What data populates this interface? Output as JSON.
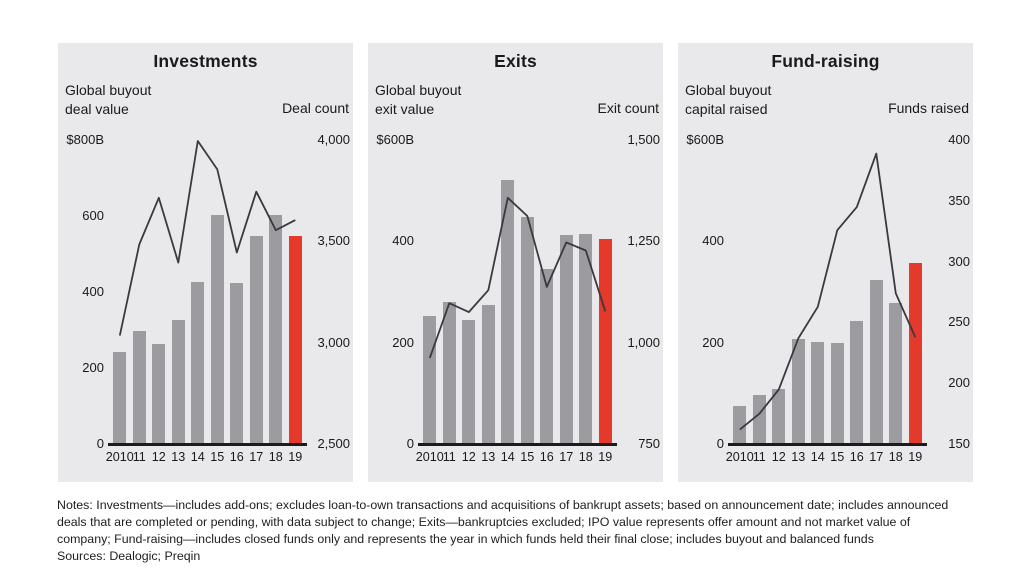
{
  "colors": {
    "panel_bg": "#e9e9eb",
    "bar_gray": "#9b9ba0",
    "accent_red": "#e5392b",
    "trend_line": "#3a3a3e",
    "axis_black": "#1b1b1b"
  },
  "chart_data": [
    {
      "type": "bar+line",
      "title": "Investments",
      "left_label_lines": [
        "Global buyout",
        "deal value"
      ],
      "right_label": "Deal count",
      "years": [
        "2010",
        "11",
        "12",
        "13",
        "14",
        "15",
        "16",
        "17",
        "18",
        "19"
      ],
      "left_axis": {
        "max": 800,
        "ticks": [
          {
            "label": "$800B",
            "value": 800
          },
          {
            "label": "600",
            "value": 600
          },
          {
            "label": "400",
            "value": 400
          },
          {
            "label": "200",
            "value": 200
          },
          {
            "label": "0",
            "value": 0
          }
        ]
      },
      "right_axis": {
        "min": 2500,
        "max": 4000,
        "ticks": [
          {
            "label": "4,000",
            "value": 4000
          },
          {
            "label": "3,500",
            "value": 3500
          },
          {
            "label": "3,000",
            "value": 3000
          },
          {
            "label": "2,500",
            "value": 2500
          }
        ]
      },
      "bars": {
        "name": "Global buyout deal value ($B)",
        "values": [
          240,
          295,
          260,
          325,
          425,
          600,
          420,
          545,
          600,
          545
        ]
      },
      "line": {
        "name": "Deal count",
        "values": [
          3030,
          3480,
          3710,
          3390,
          3990,
          3850,
          3440,
          3740,
          3550,
          3600
        ]
      },
      "highlight_last_bar": true
    },
    {
      "type": "bar+line",
      "title": "Exits",
      "left_label_lines": [
        "Global buyout",
        "exit value"
      ],
      "right_label": "Exit count",
      "years": [
        "2010",
        "11",
        "12",
        "13",
        "14",
        "15",
        "16",
        "17",
        "18",
        "19"
      ],
      "left_axis": {
        "max": 600,
        "ticks": [
          {
            "label": "$600B",
            "value": 600
          },
          {
            "label": "400",
            "value": 400
          },
          {
            "label": "200",
            "value": 200
          },
          {
            "label": "0",
            "value": 0
          }
        ]
      },
      "right_axis": {
        "min": 750,
        "max": 1500,
        "ticks": [
          {
            "label": "1,500",
            "value": 1500
          },
          {
            "label": "1,250",
            "value": 1250
          },
          {
            "label": "1,000",
            "value": 1000
          },
          {
            "label": "750",
            "value": 750
          }
        ]
      },
      "bars": {
        "name": "Global buyout exit value ($B)",
        "values": [
          250,
          278,
          242,
          272,
          520,
          447,
          344,
          410,
          412,
          403
        ]
      },
      "line": {
        "name": "Exit count",
        "values": [
          960,
          1095,
          1073,
          1127,
          1355,
          1310,
          1135,
          1245,
          1225,
          1075
        ]
      },
      "highlight_last_bar": true
    },
    {
      "type": "bar+line",
      "title": "Fund-raising",
      "left_label_lines": [
        "Global buyout",
        "capital raised"
      ],
      "right_label": "Funds raised",
      "years": [
        "2010",
        "11",
        "12",
        "13",
        "14",
        "15",
        "16",
        "17",
        "18",
        "19"
      ],
      "left_axis": {
        "max": 600,
        "ticks": [
          {
            "label": "$600B",
            "value": 600
          },
          {
            "label": "400",
            "value": 400
          },
          {
            "label": "200",
            "value": 200
          },
          {
            "label": "0",
            "value": 0
          }
        ]
      },
      "right_axis": {
        "min": 150,
        "max": 400,
        "ticks": [
          {
            "label": "400",
            "value": 400
          },
          {
            "label": "350",
            "value": 350
          },
          {
            "label": "300",
            "value": 300
          },
          {
            "label": "250",
            "value": 250
          },
          {
            "label": "200",
            "value": 200
          },
          {
            "label": "150",
            "value": 150
          }
        ]
      },
      "bars": {
        "name": "Global buyout capital raised ($B)",
        "values": [
          73,
          95,
          107,
          205,
          200,
          198,
          240,
          322,
          277,
          356
        ]
      },
      "line": {
        "name": "Funds raised",
        "values": [
          161,
          174,
          194,
          236,
          262,
          325,
          344,
          388,
          273,
          237
        ]
      },
      "highlight_last_bar": true
    }
  ],
  "notes": {
    "lines": [
      "Notes: Investments—includes add-ons; excludes loan-to-own transactions and acquisitions of bankrupt assets; based on announcement date; includes announced",
      "deals that are completed or pending, with data subject to change; Exits—bankruptcies excluded; IPO value represents offer amount and not market value of",
      "company; Fund-raising—includes closed funds only and represents the year in which funds held their final close; includes buyout and balanced funds",
      "Sources: Dealogic; Preqin"
    ]
  }
}
